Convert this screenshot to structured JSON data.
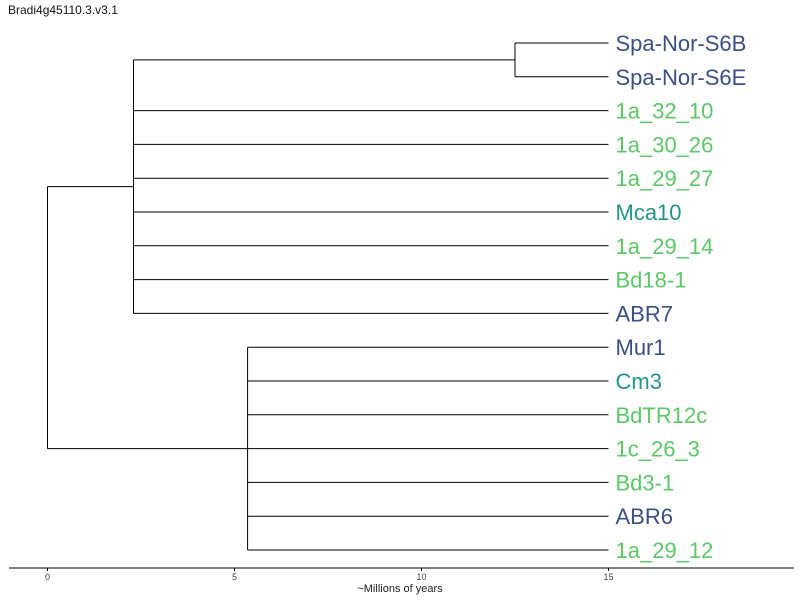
{
  "title": "Bradi4g45110.3.v3.1",
  "colors": {
    "navy": "#3b4f86",
    "teal": "#22948c",
    "green": "#5bc866"
  },
  "axis": {
    "label": "~Millions of years",
    "ticks": [
      0,
      5,
      10,
      15
    ],
    "range": [
      -1,
      20
    ]
  },
  "leaves": [
    {
      "label": "Spa-Nor-S6B",
      "color": "navy"
    },
    {
      "label": "Spa-Nor-S6E",
      "color": "navy"
    },
    {
      "label": "1a_32_10",
      "color": "green"
    },
    {
      "label": "1a_30_26",
      "color": "green"
    },
    {
      "label": "1a_29_27",
      "color": "green"
    },
    {
      "label": "Mca10",
      "color": "teal"
    },
    {
      "label": "1a_29_14",
      "color": "green"
    },
    {
      "label": "Bd18-1",
      "color": "green"
    },
    {
      "label": "ABR7",
      "color": "navy"
    },
    {
      "label": "Mur1",
      "color": "navy"
    },
    {
      "label": "Cm3",
      "color": "teal"
    },
    {
      "label": "BdTR12c",
      "color": "green"
    },
    {
      "label": "1c_26_3",
      "color": "green"
    },
    {
      "label": "Bd3-1",
      "color": "green"
    },
    {
      "label": "ABR6",
      "color": "navy"
    },
    {
      "label": "1a_29_12",
      "color": "green"
    }
  ],
  "tree": {
    "age": 0,
    "children": [
      {
        "age": 2.3,
        "children": [
          {
            "age": 12.5,
            "children": [
              {
                "leaf": 0
              },
              {
                "leaf": 1
              }
            ]
          },
          {
            "leaf": 2
          },
          {
            "leaf": 3
          },
          {
            "leaf": 4
          },
          {
            "leaf": 5
          },
          {
            "leaf": 6
          },
          {
            "leaf": 7
          },
          {
            "leaf": 8
          }
        ]
      },
      {
        "age": 5.35,
        "children": [
          {
            "leaf": 9
          },
          {
            "leaf": 10
          },
          {
            "leaf": 11
          },
          {
            "leaf": 12
          },
          {
            "leaf": 13
          },
          {
            "leaf": 14
          },
          {
            "leaf": 15
          }
        ]
      }
    ]
  },
  "leaf_age": 15
}
